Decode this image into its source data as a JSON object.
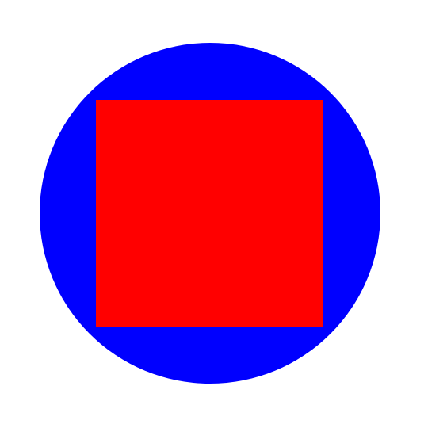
{
  "shapes": {
    "circle": {
      "fill": "#0000ff"
    },
    "square": {
      "fill": "#ff0000"
    }
  },
  "background": "#ffffff"
}
